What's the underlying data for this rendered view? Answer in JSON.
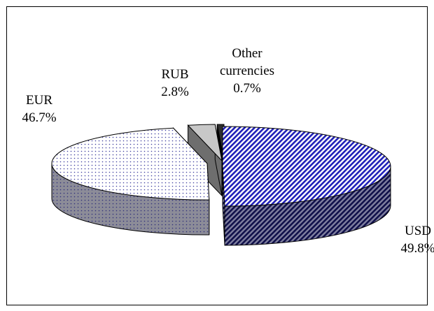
{
  "chart_data": {
    "type": "pie",
    "style": "3d-exploded",
    "series": [
      {
        "values": [
          {
            "label_lines": [
              "USD",
              "49.8%"
            ],
            "category": "USD",
            "value": 49.8,
            "color": "#2b2bcc",
            "pattern": "diagonal-hatch"
          },
          {
            "label_lines": [
              "EUR",
              "46.7%"
            ],
            "category": "EUR",
            "value": 46.7,
            "color": "#8080a0",
            "pattern": "dotted"
          },
          {
            "label_lines": [
              "RUB",
              "2.8%"
            ],
            "category": "RUB",
            "value": 2.8,
            "color": "#c0c0c0",
            "pattern": "solid"
          },
          {
            "label_lines": [
              "Other",
              "currencies",
              "0.7%"
            ],
            "category": "Other currencies",
            "value": 0.7,
            "color": "#000000",
            "pattern": "solid"
          }
        ]
      }
    ],
    "legend": "none"
  }
}
